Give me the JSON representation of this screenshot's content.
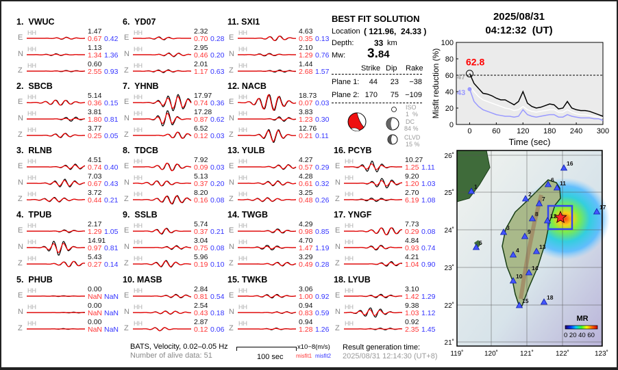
{
  "header": {
    "date": "2025/08/31",
    "time": "04:12:32  (UT)"
  },
  "stations": [
    {
      "label": "1.  VWUC",
      "comps": [
        {
          "c": "E",
          "ch": "HH",
          "amp": "1.47",
          "m1": "0.67",
          "m2": "0.42"
        },
        {
          "c": "N",
          "ch": "HH",
          "amp": "1.13",
          "m1": "1.34",
          "m2": "1.36"
        },
        {
          "c": "Z",
          "ch": "HH",
          "amp": "0.60",
          "m1": "2.55",
          "m2": "0.93"
        }
      ]
    },
    {
      "label": "2.  SBCB",
      "comps": [
        {
          "c": "E",
          "ch": "HH",
          "amp": "5.14",
          "m1": "0.36",
          "m2": "0.15"
        },
        {
          "c": "N",
          "ch": "HH",
          "amp": "3.81",
          "m1": "1.80",
          "m2": "0.81"
        },
        {
          "c": "Z",
          "ch": "HH",
          "amp": "3.77",
          "m1": "0.25",
          "m2": "0.05"
        }
      ]
    },
    {
      "label": "3.  RLNB",
      "comps": [
        {
          "c": "E",
          "ch": "HH",
          "amp": "4.51",
          "m1": "0.74",
          "m2": "0.40"
        },
        {
          "c": "N",
          "ch": "HH",
          "amp": "7.03",
          "m1": "0.67",
          "m2": "0.43"
        },
        {
          "c": "Z",
          "ch": "HH",
          "amp": "3.72",
          "m1": "0.44",
          "m2": "0.21"
        }
      ]
    },
    {
      "label": "4.  TPUB",
      "comps": [
        {
          "c": "E",
          "ch": "HH",
          "amp": "2.17",
          "m1": "1.29",
          "m2": "1.05"
        },
        {
          "c": "N",
          "ch": "HH",
          "amp": "14.91",
          "m1": "0.97",
          "m2": "0.81"
        },
        {
          "c": "Z",
          "ch": "HH",
          "amp": "5.43",
          "m1": "0.27",
          "m2": "0.14"
        }
      ]
    },
    {
      "label": "5.  PHUB",
      "comps": [
        {
          "c": "E",
          "ch": "HH",
          "amp": "0.00",
          "m1": "NaN",
          "m2": "NaN"
        },
        {
          "c": "N",
          "ch": "HH",
          "amp": "0.00",
          "m1": "NaN",
          "m2": "NaN"
        },
        {
          "c": "Z",
          "ch": "HH",
          "amp": "0.00",
          "m1": "NaN",
          "m2": "NaN"
        }
      ]
    },
    {
      "label": "6.  YD07",
      "comps": [
        {
          "c": "E",
          "ch": "HH",
          "amp": "2.32",
          "m1": "0.70",
          "m2": "0.28"
        },
        {
          "c": "N",
          "ch": "HH",
          "amp": "2.95",
          "m1": "0.46",
          "m2": "0.20"
        },
        {
          "c": "Z",
          "ch": "HH",
          "amp": "2.01",
          "m1": "1.17",
          "m2": "0.63"
        }
      ]
    },
    {
      "label": "7.  YHNB",
      "comps": [
        {
          "c": "E",
          "ch": "HH",
          "amp": "17.97",
          "m1": "0.74",
          "m2": "0.36"
        },
        {
          "c": "N",
          "ch": "HH",
          "amp": "17.28",
          "m1": "0.87",
          "m2": "0.62"
        },
        {
          "c": "Z",
          "ch": "HH",
          "amp": "6.52",
          "m1": "0.12",
          "m2": "0.03"
        }
      ]
    },
    {
      "label": "8.  TDCB",
      "comps": [
        {
          "c": "E",
          "ch": "HH",
          "amp": "7.92",
          "m1": "0.09",
          "m2": "0.03"
        },
        {
          "c": "N",
          "ch": "HH",
          "amp": "5.13",
          "m1": "0.37",
          "m2": "0.20"
        },
        {
          "c": "Z",
          "ch": "HH",
          "amp": "8.20",
          "m1": "0.16",
          "m2": "0.08"
        }
      ]
    },
    {
      "label": "9.  SSLB",
      "comps": [
        {
          "c": "E",
          "ch": "HH",
          "amp": "5.74",
          "m1": "0.37",
          "m2": "0.21"
        },
        {
          "c": "N",
          "ch": "HH",
          "amp": "3.04",
          "m1": "0.75",
          "m2": "0.08"
        },
        {
          "c": "Z",
          "ch": "HH",
          "amp": "5.96",
          "m1": "0.19",
          "m2": "0.10"
        }
      ]
    },
    {
      "label": "10. MASB",
      "comps": [
        {
          "c": "E",
          "ch": "HH",
          "amp": "2.84",
          "m1": "0.81",
          "m2": "0.54"
        },
        {
          "c": "N",
          "ch": "HH",
          "amp": "2.54",
          "m1": "0.43",
          "m2": "0.18"
        },
        {
          "c": "Z",
          "ch": "HH",
          "amp": "2.87",
          "m1": "0.12",
          "m2": "0.06"
        }
      ]
    },
    {
      "label": "11. SXI1",
      "comps": [
        {
          "c": "E",
          "ch": "HH",
          "amp": "4.63",
          "m1": "0.35",
          "m2": "0.13"
        },
        {
          "c": "N",
          "ch": "HH",
          "amp": "2.10",
          "m1": "1.29",
          "m2": "0.76"
        },
        {
          "c": "Z",
          "ch": "HH",
          "amp": "1.44",
          "m1": "2.68",
          "m2": "1.57"
        }
      ]
    },
    {
      "label": "12. NACB",
      "comps": [
        {
          "c": "E",
          "ch": "HH",
          "amp": "18.73",
          "m1": "0.07",
          "m2": "0.03"
        },
        {
          "c": "N",
          "ch": "HH",
          "amp": "3.83",
          "m1": "1.23",
          "m2": "0.30"
        },
        {
          "c": "Z",
          "ch": "HH",
          "amp": "12.76",
          "m1": "0.21",
          "m2": "0.11"
        }
      ]
    },
    {
      "label": "13. YULB",
      "comps": [
        {
          "c": "E",
          "ch": "HH",
          "amp": "4.27",
          "m1": "0.57",
          "m2": "0.29"
        },
        {
          "c": "N",
          "ch": "HH",
          "amp": "4.28",
          "m1": "0.61",
          "m2": "0.32"
        },
        {
          "c": "Z",
          "ch": "HH",
          "amp": "3.25",
          "m1": "0.48",
          "m2": "0.26"
        }
      ]
    },
    {
      "label": "14. TWGB",
      "comps": [
        {
          "c": "E",
          "ch": "HH",
          "amp": "4.29",
          "m1": "0.98",
          "m2": "0.85"
        },
        {
          "c": "N",
          "ch": "HH",
          "amp": "4.70",
          "m1": "1.47",
          "m2": "1.19"
        },
        {
          "c": "Z",
          "ch": "HH",
          "amp": "3.29",
          "m1": "0.49",
          "m2": "0.28"
        }
      ]
    },
    {
      "label": "15. TWKB",
      "comps": [
        {
          "c": "E",
          "ch": "HH",
          "amp": "3.06",
          "m1": "1.00",
          "m2": "0.92"
        },
        {
          "c": "N",
          "ch": "HH",
          "amp": "0.94",
          "m1": "0.83",
          "m2": "0.59"
        },
        {
          "c": "Z",
          "ch": "HH",
          "amp": "0.94",
          "m1": "1.28",
          "m2": "1.26"
        }
      ]
    },
    {
      "label": "16. PCYB",
      "comps": [
        {
          "c": "E",
          "ch": "HH",
          "amp": "10.27",
          "m1": "1.25",
          "m2": "1.11"
        },
        {
          "c": "N",
          "ch": "HH",
          "amp": "9.20",
          "m1": "1.20",
          "m2": "1.03"
        },
        {
          "c": "Z",
          "ch": "HH",
          "amp": "2.70",
          "m1": "6.19",
          "m2": "1.08"
        }
      ]
    },
    {
      "label": "17. YNGF",
      "comps": [
        {
          "c": "E",
          "ch": "HH",
          "amp": "7.73",
          "m1": "0.29",
          "m2": "0.08"
        },
        {
          "c": "N",
          "ch": "HH",
          "amp": "4.84",
          "m1": "0.93",
          "m2": "0.74"
        },
        {
          "c": "Z",
          "ch": "HH",
          "amp": "4.21",
          "m1": "1.04",
          "m2": "0.90"
        }
      ]
    },
    {
      "label": "18. LYUB",
      "comps": [
        {
          "c": "E",
          "ch": "HH",
          "amp": "3.10",
          "m1": "1.42",
          "m2": "1.29"
        },
        {
          "c": "N",
          "ch": "HH",
          "amp": "9.38",
          "m1": "1.03",
          "m2": "1.12"
        },
        {
          "c": "Z",
          "ch": "HH",
          "amp": "0.92",
          "m1": "2.35",
          "m2": "1.45"
        }
      ]
    }
  ],
  "solution": {
    "title": "BEST FIT SOLUTION",
    "location_label": "Location",
    "location_value": "( 121.96,  24.33 )",
    "depth_label": "Depth:",
    "depth_value": "33",
    "depth_unit": "km",
    "mw_label": "Mw:",
    "mw_value_int": "3.",
    "mw_value_dec": "84",
    "columns": [
      "Strike",
      "Dip",
      "Rake"
    ],
    "planes": [
      {
        "name": "Plane 1:",
        "strike": "44",
        "dip": "23",
        "rake": "−38"
      },
      {
        "name": "Plane 2:",
        "strike": "170",
        "dip": "75",
        "rake": "−109"
      }
    ],
    "iso_label": "ISO",
    "iso_value": "1  %",
    "dc_label": "DC",
    "dc_value": "84 %",
    "clvd_label": "CLVD",
    "clvd_value": "15 %",
    "colors": {
      "beachball": "#ee1111"
    }
  },
  "footer": {
    "filter": "BATS, Velocity, 0.02–0.05 Hz",
    "alive": "Number of alive data: 51",
    "scale": "100 sec",
    "units": "x10−8(m/s)",
    "misfit1": "misfit1",
    "misfit2": "misfit2",
    "gen_label": "Result generation time:",
    "gen_time": "2025/08/31 12:14:30 (UT+8)"
  },
  "chart_data": {
    "type": "line",
    "xlabel": "Time (sec)",
    "ylabel": "Misfit reduction (%)",
    "xlim": [
      -30,
      300
    ],
    "ylim": [
      0,
      100
    ],
    "xticks": [
      "0",
      "60",
      "120",
      "180",
      "240",
      "300"
    ],
    "yticks": [
      "0",
      "20",
      "40",
      "60",
      "80",
      "100"
    ],
    "x": [
      0,
      10,
      20,
      30,
      40,
      50,
      60,
      70,
      80,
      90,
      100,
      110,
      120,
      130,
      140,
      150,
      160,
      170,
      180,
      190,
      200,
      210,
      220,
      230,
      240,
      250,
      260,
      270,
      280,
      290,
      300
    ],
    "series": [
      {
        "color": "#000000",
        "values": [
          62,
          50,
          44,
          38,
          37,
          35,
          32,
          30,
          30,
          27,
          24,
          28,
          40,
          26,
          22,
          20,
          21,
          23,
          25,
          24,
          19,
          20,
          28,
          20,
          18,
          17,
          17,
          16,
          14,
          12,
          10
        ]
      },
      {
        "color": "#ffffff",
        "values": [
          47,
          40,
          34,
          30,
          28,
          26,
          24,
          22,
          20,
          19,
          17,
          18,
          22,
          18,
          16,
          15,
          16,
          17,
          18,
          18,
          15,
          15,
          18,
          15,
          13,
          12,
          12,
          11,
          10,
          9,
          8
        ]
      },
      {
        "color": "#9999ff",
        "values": [
          43,
          28,
          22,
          18,
          16,
          14,
          12,
          11,
          10,
          10,
          9,
          10,
          18,
          12,
          10,
          9,
          10,
          11,
          12,
          12,
          9,
          9,
          12,
          10,
          9,
          8,
          8,
          8,
          7,
          7,
          5
        ]
      }
    ],
    "reference_line": 60,
    "annotations": {
      "peak": "62.8",
      "white_start": "47",
      "blue_start": "43"
    },
    "colors": {
      "peak": "#ff0000",
      "background": "#ebebeb"
    }
  },
  "map": {
    "lat_ticks": [
      "26˚",
      "25˚",
      "24˚",
      "23˚",
      "22˚",
      "21˚"
    ],
    "lon_ticks": [
      "119˚",
      "120˚",
      "121˚",
      "122˚",
      "123˚"
    ],
    "station_labels": [
      "1",
      "2",
      "3",
      "4",
      "5",
      "6",
      "7",
      "8",
      "9",
      "10",
      "11",
      "12",
      "13",
      "14",
      "15",
      "16",
      "17",
      "18"
    ],
    "colorbar_title": "MR",
    "colorbar_ticks": "0 20 40 60",
    "colors": {
      "station": "#4455ff",
      "epicenter": "#ff2222",
      "box": "#3344ee"
    }
  }
}
